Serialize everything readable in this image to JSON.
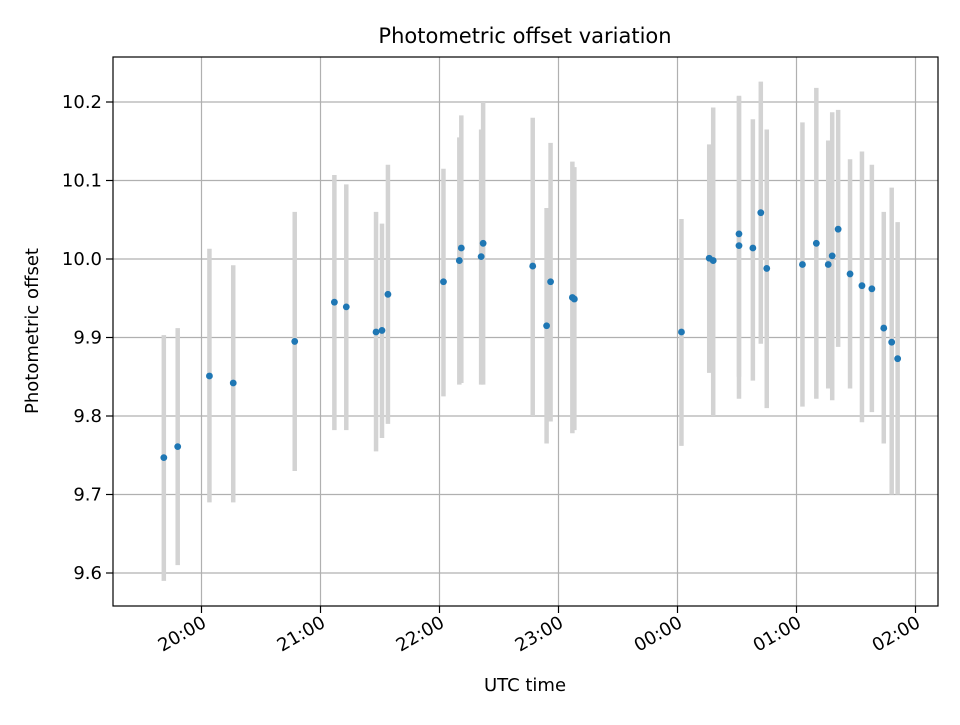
{
  "chart_data": {
    "type": "scatter",
    "title": "Photometric offset variation",
    "xlabel": "UTC time",
    "ylabel": "Photometric offset",
    "x_tick_labels": [
      "20:00",
      "21:00",
      "22:00",
      "23:00",
      "00:00",
      "01:00",
      "02:00"
    ],
    "x_ticks_hours": [
      20,
      21,
      22,
      23,
      24,
      25,
      26
    ],
    "y_ticks": [
      9.6,
      9.7,
      9.8,
      9.9,
      10.0,
      10.1,
      10.2
    ],
    "y_tick_labels": [
      "9.6",
      "9.7",
      "9.8",
      "9.9",
      "10.0",
      "10.1",
      "10.2"
    ],
    "ylim": [
      9.555,
      10.26
    ],
    "grid": true,
    "point_color": "#1f77b4",
    "errorbar_color": "#d3d3d3",
    "series": [
      {
        "x": [
          "19:41",
          "19:48",
          "20:04",
          "20:16",
          "20:47",
          "21:07",
          "21:13",
          "21:28",
          "21:31",
          "21:34",
          "22:02",
          "22:10",
          "22:11",
          "22:21",
          "22:22",
          "22:47",
          "22:54",
          "22:56",
          "23:07",
          "23:08",
          "00:02",
          "00:16",
          "00:18",
          "00:31",
          "00:31",
          "00:38",
          "00:42",
          "00:45",
          "01:03",
          "01:10",
          "01:16",
          "01:18",
          "01:21",
          "01:27",
          "01:33",
          "01:38",
          "01:44",
          "01:48",
          "01:51"
        ],
        "y": [
          9.747,
          9.761,
          9.851,
          9.842,
          9.895,
          9.945,
          9.939,
          9.907,
          9.909,
          9.955,
          9.971,
          9.998,
          10.014,
          10.003,
          10.02,
          9.991,
          9.915,
          9.971,
          9.951,
          9.949,
          9.907,
          10.001,
          9.998,
          10.017,
          10.032,
          10.014,
          10.059,
          9.988,
          9.993,
          10.02,
          9.993,
          10.004,
          10.038,
          9.981,
          9.966,
          9.962,
          9.912,
          9.894,
          9.873
        ],
        "err_low": [
          9.59,
          9.61,
          9.69,
          9.69,
          9.73,
          9.782,
          9.782,
          9.755,
          9.772,
          9.79,
          9.825,
          9.84,
          9.842,
          9.84,
          9.84,
          9.8,
          9.765,
          9.793,
          9.778,
          9.782,
          9.762,
          9.855,
          9.8,
          9.822,
          9.85,
          9.845,
          9.892,
          9.81,
          9.812,
          9.822,
          9.835,
          9.82,
          9.888,
          9.835,
          9.792,
          9.805,
          9.765,
          9.7,
          9.7
        ],
        "err_high": [
          9.903,
          9.912,
          10.013,
          9.992,
          10.06,
          10.107,
          10.095,
          10.06,
          10.045,
          10.12,
          10.115,
          10.155,
          10.183,
          10.165,
          10.2,
          10.18,
          10.065,
          10.148,
          10.124,
          10.117,
          10.051,
          10.146,
          10.193,
          10.208,
          10.207,
          10.178,
          10.226,
          10.165,
          10.174,
          10.218,
          10.151,
          10.187,
          10.19,
          10.127,
          10.137,
          10.12,
          10.06,
          10.091,
          10.047
        ]
      }
    ]
  }
}
